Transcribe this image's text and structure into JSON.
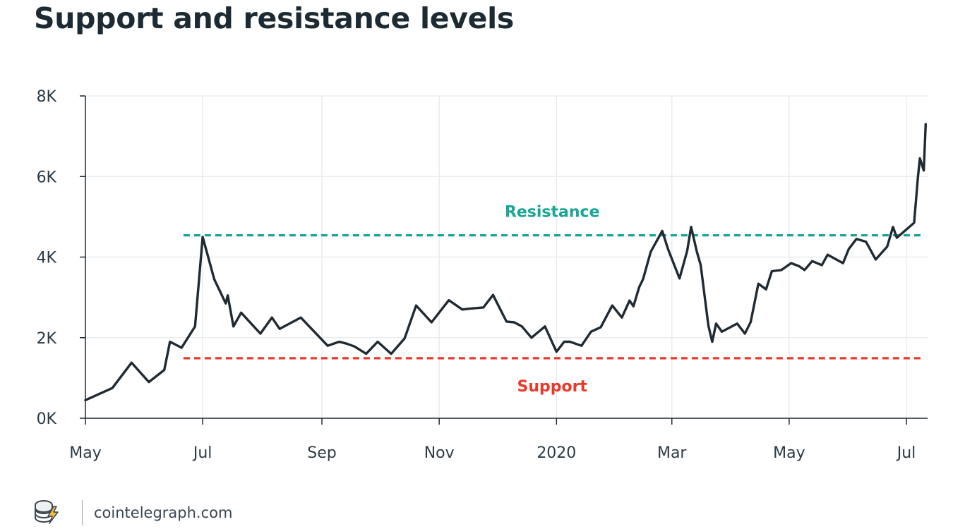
{
  "page": {
    "title": "Support and resistance levels"
  },
  "footer": {
    "site": "cointelegraph.com",
    "logo_icon": "cointelegraph-logo-icon"
  },
  "chart_data": {
    "type": "line",
    "title": "Support and resistance levels",
    "xlabel": "",
    "ylabel": "",
    "x_ticks": [
      {
        "label": "May",
        "date": "2019-05-01"
      },
      {
        "label": "Jul",
        "date": "2019-07-01"
      },
      {
        "label": "Sep",
        "date": "2019-09-01"
      },
      {
        "label": "Nov",
        "date": "2019-11-01"
      },
      {
        "label": "2020",
        "date": "2020-01-01"
      },
      {
        "label": "Mar",
        "date": "2020-03-01"
      },
      {
        "label": "May",
        "date": "2020-05-01"
      },
      {
        "label": "Jul",
        "date": "2020-07-01"
      }
    ],
    "y_ticks": [
      {
        "label": "0K",
        "value": 0
      },
      {
        "label": "2K",
        "value": 2000
      },
      {
        "label": "4K",
        "value": 4000
      },
      {
        "label": "6K",
        "value": 6000
      },
      {
        "label": "8K",
        "value": 8000
      }
    ],
    "xlim": [
      "2019-05-01",
      "2020-07-12"
    ],
    "ylim": [
      0,
      8000
    ],
    "grid": true,
    "colors": {
      "line": "#1f2a32",
      "resistance": "#1aa595",
      "support": "#e8392a",
      "grid": "#e9ecee",
      "axis": "#1f2a32"
    },
    "series": [
      {
        "x": [
          "2019-05-01",
          "2019-05-15",
          "2019-05-25",
          "2019-06-03",
          "2019-06-11",
          "2019-06-14",
          "2019-06-20",
          "2019-06-27",
          "2019-07-01",
          "2019-07-07",
          "2019-07-13",
          "2019-07-14",
          "2019-07-17",
          "2019-07-21",
          "2019-07-31",
          "2019-08-06",
          "2019-08-10",
          "2019-08-21",
          "2019-09-04",
          "2019-09-10",
          "2019-09-14",
          "2019-09-18",
          "2019-09-24",
          "2019-09-30",
          "2019-10-07",
          "2019-10-14",
          "2019-10-20",
          "2019-10-28",
          "2019-11-06",
          "2019-11-13",
          "2019-11-17",
          "2019-11-24",
          "2019-11-29",
          "2019-12-06",
          "2019-12-10",
          "2019-12-14",
          "2019-12-19",
          "2019-12-26",
          "2020-01-01",
          "2020-01-05",
          "2020-01-08",
          "2020-01-14",
          "2020-01-19",
          "2020-01-24",
          "2020-01-30",
          "2020-02-04",
          "2020-02-08",
          "2020-02-10",
          "2020-02-13",
          "2020-02-15",
          "2020-02-19",
          "2020-02-25",
          "2020-02-28",
          "2020-03-05",
          "2020-03-09",
          "2020-03-11",
          "2020-03-14",
          "2020-03-16",
          "2020-03-20",
          "2020-03-22",
          "2020-03-24",
          "2020-03-27",
          "2020-04-04",
          "2020-04-08",
          "2020-04-11",
          "2020-04-15",
          "2020-04-19",
          "2020-04-22",
          "2020-04-27",
          "2020-05-02",
          "2020-05-06",
          "2020-05-09",
          "2020-05-13",
          "2020-05-18",
          "2020-05-21",
          "2020-05-29",
          "2020-06-01",
          "2020-06-05",
          "2020-06-10",
          "2020-06-15",
          "2020-06-21",
          "2020-06-24",
          "2020-06-26",
          "2020-07-05",
          "2020-07-07",
          "2020-07-08",
          "2020-07-10",
          "2020-07-11"
        ],
        "y": [
          450,
          750,
          1380,
          900,
          1200,
          1900,
          1750,
          2280,
          4500,
          3450,
          2850,
          3050,
          2280,
          2620,
          2100,
          2500,
          2220,
          2500,
          1800,
          1900,
          1850,
          1780,
          1600,
          1900,
          1600,
          1980,
          2800,
          2380,
          2930,
          2700,
          2720,
          2750,
          3060,
          2400,
          2380,
          2280,
          2000,
          2280,
          1650,
          1900,
          1900,
          1800,
          2150,
          2260,
          2800,
          2500,
          2920,
          2780,
          3250,
          3450,
          4130,
          4650,
          4200,
          3470,
          4160,
          4750,
          4130,
          3800,
          2300,
          1900,
          2350,
          2150,
          2350,
          2100,
          2390,
          3340,
          3200,
          3650,
          3680,
          3850,
          3780,
          3680,
          3900,
          3800,
          4060,
          3850,
          4200,
          4450,
          4380,
          3940,
          4260,
          4750,
          4480,
          4850,
          6000,
          6450,
          6150,
          7300
        ]
      }
    ],
    "annotations": [
      {
        "type": "hline",
        "label": "Resistance",
        "value": 4540,
        "x_start": "2019-06-21",
        "x_end": "2020-07-10",
        "color": "#1aa595",
        "style": "dashed"
      },
      {
        "type": "hline",
        "label": "Support",
        "value": 1490,
        "x_start": "2019-06-21",
        "x_end": "2020-07-10",
        "color": "#e8392a",
        "style": "dashed"
      }
    ]
  }
}
